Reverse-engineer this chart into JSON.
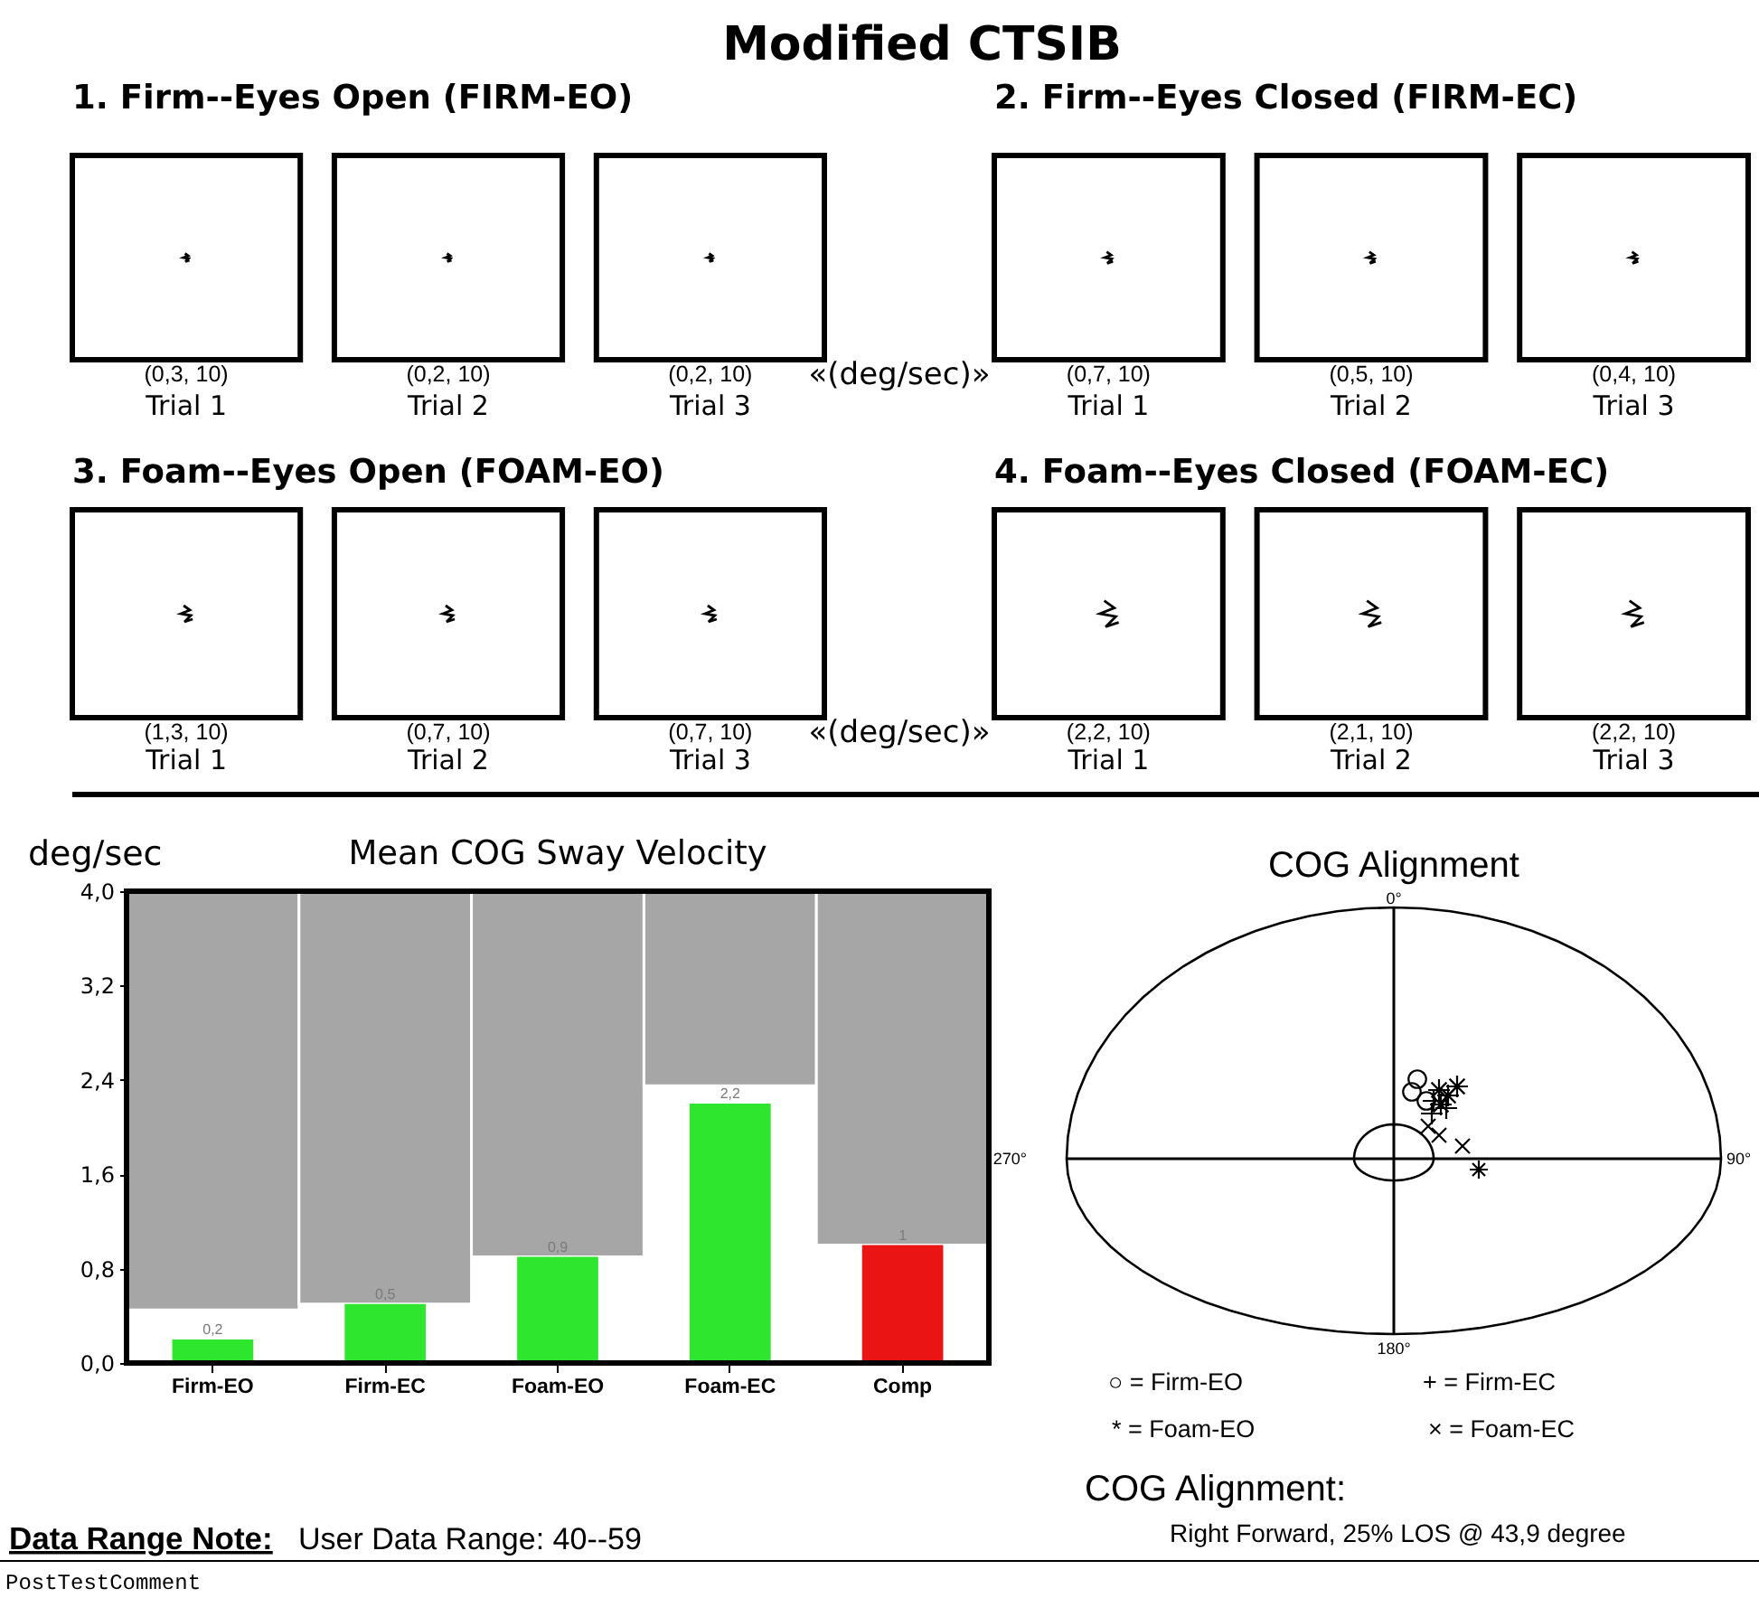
{
  "chart_data": [
    {
      "type": "other",
      "title": "Modified CTSIB"
    },
    {
      "type": "other",
      "title": "1. Firm--Eyes Open (FIRM-EO)",
      "categories": [
        "Trial 1",
        "Trial 2",
        "Trial 3"
      ],
      "annotations": [
        "(0,3, 10)",
        "(0,2, 10)",
        "(0,2, 10)"
      ],
      "xlabel": "«(deg/sec)»"
    },
    {
      "type": "other",
      "title": "2. Firm--Eyes Closed (FIRM-EC)",
      "categories": [
        "Trial 1",
        "Trial 2",
        "Trial 3"
      ],
      "annotations": [
        "(0,7, 10)",
        "(0,5, 10)",
        "(0,4, 10)"
      ]
    },
    {
      "type": "other",
      "title": "3. Foam--Eyes Open (FOAM-EO)",
      "categories": [
        "Trial 1",
        "Trial 2",
        "Trial 3"
      ],
      "annotations": [
        "(1,3, 10)",
        "(0,7, 10)",
        "(0,7, 10)"
      ],
      "xlabel": "«(deg/sec)»"
    },
    {
      "type": "other",
      "title": "4. Foam--Eyes Closed (FOAM-EC)",
      "categories": [
        "Trial 1",
        "Trial 2",
        "Trial 3"
      ],
      "annotations": [
        "(2,2, 10)",
        "(2,1, 10)",
        "(2,2, 10)"
      ]
    },
    {
      "type": "bar",
      "title": "Mean COG Sway Velocity",
      "ylabel": "deg/sec",
      "categories": [
        "Firm-EO",
        "Firm-EC",
        "Foam-EO",
        "Foam-EC",
        "Comp"
      ],
      "series": [
        {
          "color": "#a6a6a6",
          "base": [
            0.45,
            0.5,
            0.9,
            2.35,
            1
          ],
          "values": [
            3.55,
            3.5,
            3.1,
            1.65,
            3
          ]
        },
        {
          "colors": [
            "#2ee62e",
            "#2ee62e",
            "#2ee62e",
            "#2ee62e",
            "#eb1414"
          ],
          "values": [
            0.2,
            0.5,
            0.9,
            2.2,
            1
          ],
          "value_labels": [
            "0,2",
            "0,5",
            "0,9",
            "2,2",
            "1"
          ]
        }
      ],
      "ylim": [
        0,
        4
      ],
      "yticks": [
        {
          "value": 0,
          "label": "0,0"
        },
        {
          "value": 0.8,
          "label": "0,8"
        },
        {
          "value": 1.6,
          "label": "1,6"
        },
        {
          "value": 2.4,
          "label": "2,4"
        },
        {
          "value": 3.2,
          "label": "3,2"
        },
        {
          "value": 4,
          "label": "4,0"
        }
      ],
      "annotations": [
        "Data Range Note:",
        "User Data Range: 40--59",
        "PostTestComment"
      ]
    },
    {
      "type": "other",
      "title": "COG Alignment",
      "categories": [
        "0°",
        "90°",
        "180°",
        "270°"
      ],
      "annotations": [
        "○ = Firm-EO",
        "+ = Firm-EC",
        "* = Foam-EO",
        "× = Foam-EC",
        "COG Alignment:",
        "Right Forward, 25% LOS @ 43,9 degree"
      ]
    }
  ]
}
